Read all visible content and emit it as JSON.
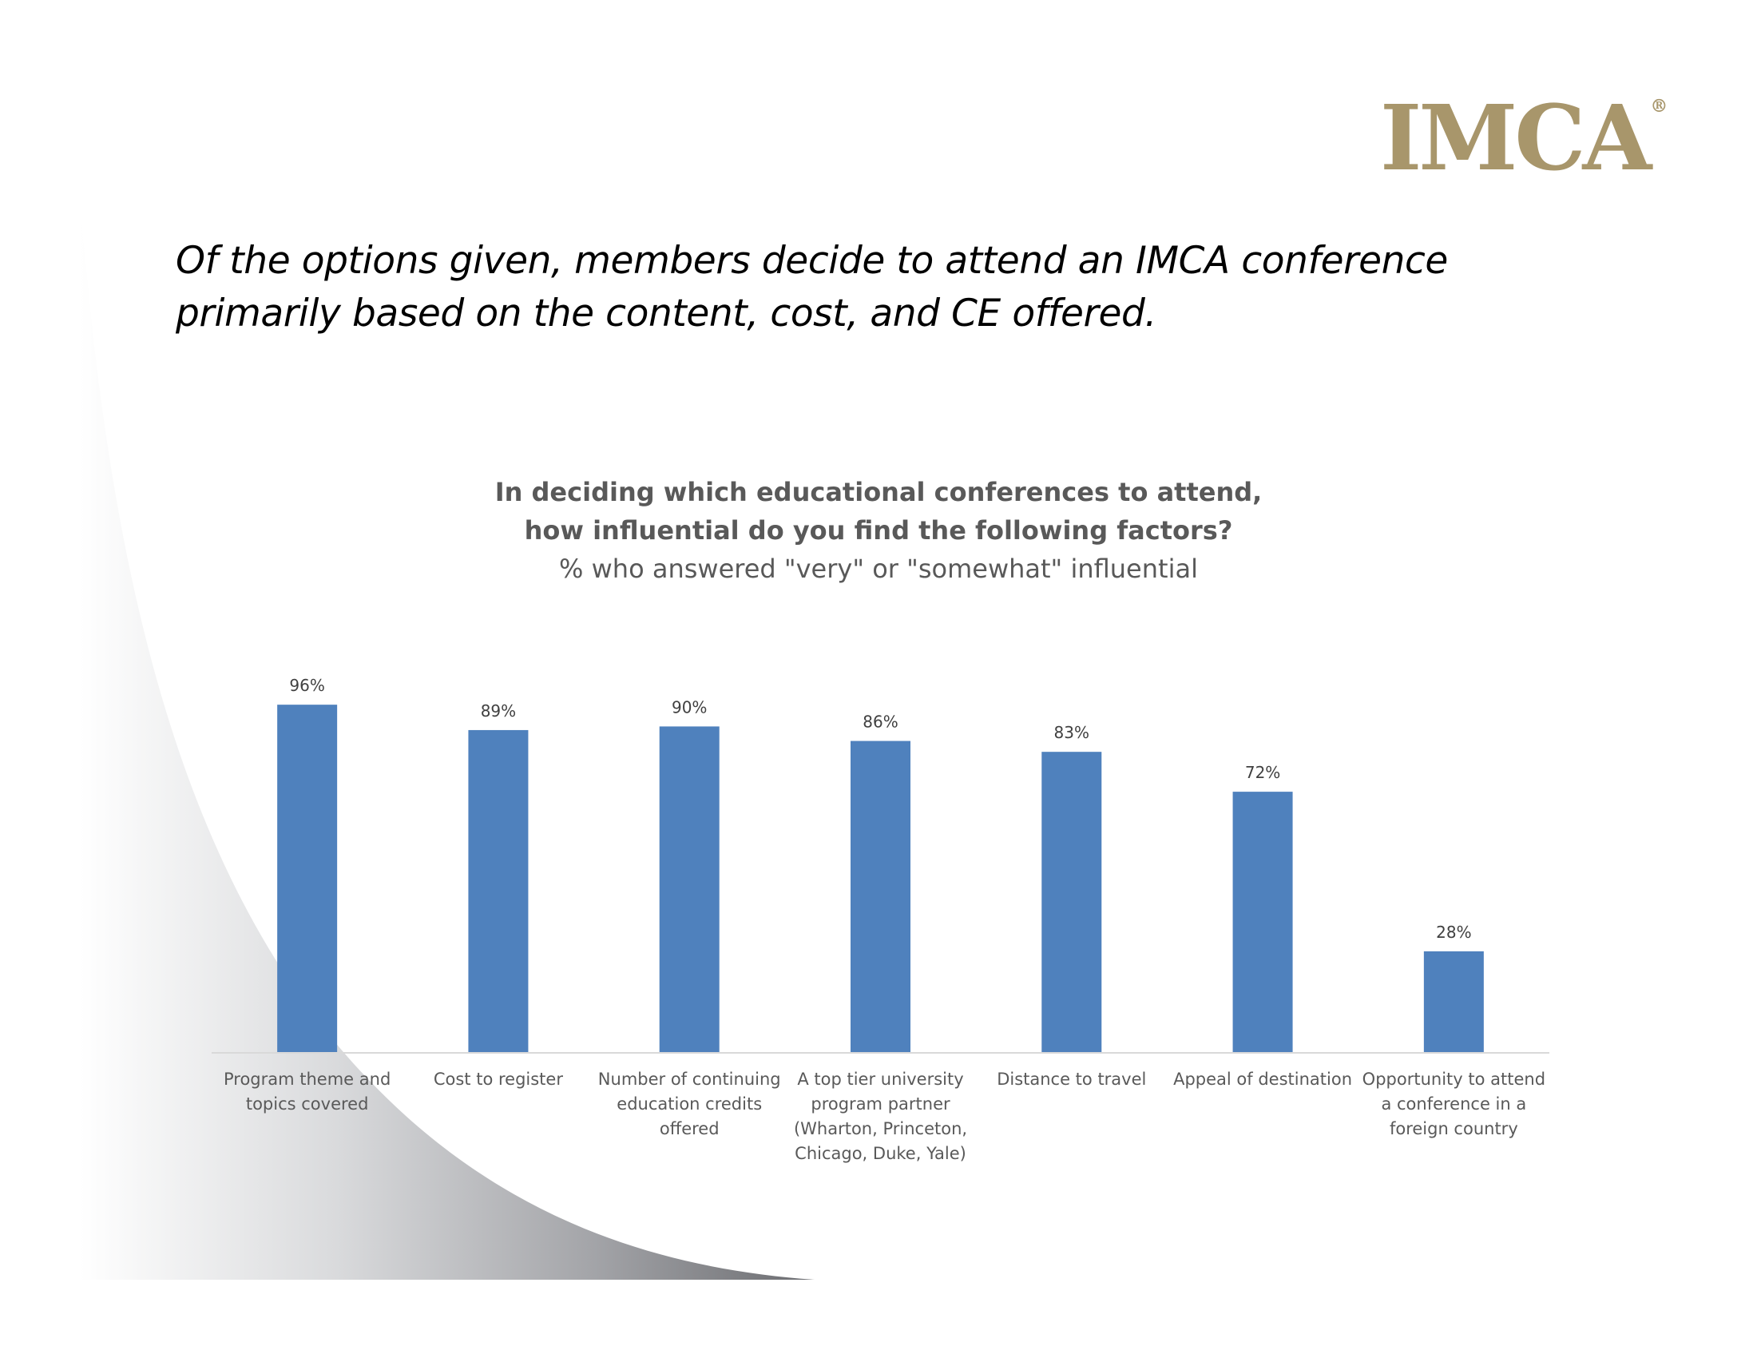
{
  "logo": {
    "text": "IMCA",
    "mark": "®",
    "color": "#a8966b"
  },
  "headline": {
    "line1": "Of the options given, members decide to attend an IMCA conference",
    "line2": "primarily based on the content, cost, and CE offered."
  },
  "chart_data": {
    "type": "bar",
    "title": "In deciding which educational conferences to attend, how influential do you find the following factors?",
    "title_line1": "In deciding which educational conferences to attend,",
    "title_line2": "how influential do you find the following factors?",
    "subtitle": "% who answered \"very\" or \"somewhat\" influential",
    "categories": [
      "Program theme and topics covered",
      "Cost to register",
      "Number of continuing education credits offered",
      "A top tier university program partner (Wharton, Princeton, Chicago, Duke, Yale)",
      "Distance to travel",
      "Appeal of destination",
      "Opportunity to attend a conference in a foreign country"
    ],
    "category_lines": [
      [
        "Program theme and",
        "topics covered"
      ],
      [
        "Cost to register"
      ],
      [
        "Number of continuing",
        "education credits",
        "offered"
      ],
      [
        "A top tier university",
        "program partner",
        "(Wharton, Princeton,",
        "Chicago, Duke, Yale)"
      ],
      [
        "Distance to travel"
      ],
      [
        "Appeal of destination"
      ],
      [
        "Opportunity to attend",
        "a conference in a",
        "foreign country"
      ]
    ],
    "values": [
      96,
      89,
      90,
      86,
      83,
      72,
      28
    ],
    "data_labels": [
      "96%",
      "89%",
      "90%",
      "86%",
      "83%",
      "72%",
      "28%"
    ],
    "unit": "%",
    "ylim": [
      0,
      100
    ],
    "grid": false,
    "legend": "none",
    "bar_color": "#4f81bd"
  }
}
